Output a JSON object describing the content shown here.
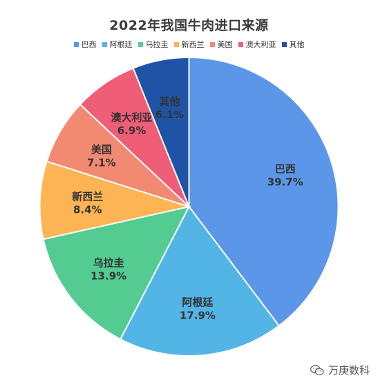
{
  "chart_data": {
    "type": "pie",
    "title": "2022年我国牛肉进口来源",
    "categories": [
      "巴西",
      "阿根廷",
      "乌拉圭",
      "新西兰",
      "美国",
      "澳大利亚",
      "其他"
    ],
    "values": [
      39.7,
      17.9,
      13.9,
      8.4,
      7.1,
      6.9,
      6.1
    ],
    "value_labels": [
      "39.7%",
      "17.9%",
      "13.9%",
      "8.4%",
      "7.1%",
      "6.9%",
      "6.1%"
    ],
    "colors": [
      "#5B96E8",
      "#53B5E6",
      "#53CB91",
      "#FDB454",
      "#F28A72",
      "#EF5D76",
      "#1F53A5"
    ],
    "legend_position": "top"
  },
  "watermark": {
    "text": "万庚数科",
    "icon": "wechat-icon"
  }
}
